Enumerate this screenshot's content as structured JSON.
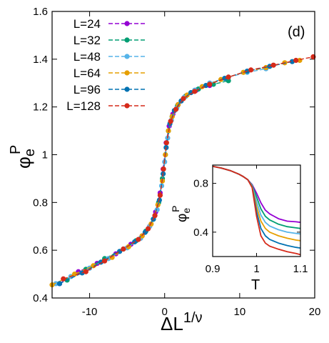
{
  "chart_data": [
    {
      "type": "scatter",
      "panel_label": "(d)",
      "xlabel": "ΔL",
      "xlabel_sup": "1/ν",
      "ylabel": "φ",
      "ylabel_sub": "e",
      "ylabel_sup": "P",
      "xlim": [
        -15,
        20
      ],
      "ylim": [
        0.4,
        1.6
      ],
      "xticks": [
        -10,
        0,
        10,
        20
      ],
      "yticks": [
        0.4,
        0.6,
        0.8,
        1,
        1.2,
        1.4,
        1.6
      ],
      "xtick_labels": [
        "-10",
        "0",
        "10",
        "20"
      ],
      "ytick_labels": [
        "0.4",
        "0.6",
        "0.8",
        "1",
        "1.2",
        "1.4",
        "1.6"
      ],
      "legend_position": "top-left",
      "series": [
        {
          "name": "L=24",
          "color": "#9400d3",
          "x": [
            -14.0,
            -11.5,
            -9.0,
            -6.5,
            -4.5,
            -3.0,
            -2.0,
            -1.2,
            -0.6,
            -0.2,
            0.2,
            0.6,
            1.1,
            1.8,
            2.8,
            4.2,
            6.0
          ],
          "y": [
            0.46,
            0.51,
            0.545,
            0.585,
            0.625,
            0.66,
            0.7,
            0.76,
            0.84,
            0.94,
            1.05,
            1.12,
            1.17,
            1.21,
            1.245,
            1.27,
            1.29
          ]
        },
        {
          "name": "L=32",
          "color": "#009e73",
          "x": [
            -13.0,
            -10.5,
            -8.0,
            -5.5,
            -3.8,
            -2.5,
            -1.5,
            -0.8,
            -0.3,
            0.1,
            0.5,
            1.0,
            1.7,
            2.8,
            4.5,
            6.5,
            8.5
          ],
          "y": [
            0.475,
            0.52,
            0.565,
            0.605,
            0.64,
            0.68,
            0.73,
            0.8,
            0.9,
            1.0,
            1.1,
            1.16,
            1.205,
            1.245,
            1.275,
            1.295,
            1.31
          ]
        },
        {
          "name": "L=48",
          "color": "#56b4e9",
          "x": [
            -14.5,
            -12.5,
            -10.0,
            -7.5,
            -5.0,
            -3.2,
            -2.0,
            -1.0,
            -0.4,
            0.0,
            0.4,
            0.9,
            1.6,
            2.6,
            4.0,
            6.0,
            8.5,
            11.0,
            13.5
          ],
          "y": [
            0.46,
            0.49,
            0.525,
            0.565,
            0.61,
            0.65,
            0.7,
            0.77,
            0.87,
            0.97,
            1.07,
            1.145,
            1.195,
            1.24,
            1.27,
            1.3,
            1.325,
            1.345,
            1.36
          ]
        },
        {
          "name": "L=64",
          "color": "#e69f00",
          "x": [
            -15.0,
            -12.0,
            -9.5,
            -7.0,
            -4.8,
            -3.0,
            -1.8,
            -0.9,
            -0.3,
            0.1,
            0.5,
            1.0,
            1.8,
            3.0,
            5.0,
            7.5,
            10.5,
            13.5,
            16.0,
            18.0
          ],
          "y": [
            0.455,
            0.5,
            0.535,
            0.57,
            0.615,
            0.66,
            0.71,
            0.79,
            0.89,
            1.0,
            1.1,
            1.16,
            1.21,
            1.25,
            1.285,
            1.315,
            1.345,
            1.365,
            1.385,
            1.395
          ]
        },
        {
          "name": "L=96",
          "color": "#0072b2",
          "x": [
            -14.0,
            -11.0,
            -8.5,
            -6.0,
            -4.0,
            -2.6,
            -1.5,
            -0.7,
            -0.2,
            0.2,
            0.7,
            1.3,
            2.2,
            3.5,
            5.5,
            8.0,
            11.0,
            14.0,
            17.0
          ],
          "y": [
            0.46,
            0.505,
            0.55,
            0.595,
            0.635,
            0.675,
            0.73,
            0.81,
            0.92,
            1.03,
            1.13,
            1.185,
            1.225,
            1.26,
            1.29,
            1.32,
            1.35,
            1.37,
            1.39
          ]
        },
        {
          "name": "L=128",
          "color": "#d62a1a",
          "x": [
            -13.5,
            -10.5,
            -8.0,
            -5.5,
            -3.5,
            -2.2,
            -1.3,
            -0.6,
            -0.15,
            0.25,
            0.8,
            1.5,
            2.5,
            4.0,
            6.0,
            8.5,
            11.5,
            14.5,
            17.5,
            19.8
          ],
          "y": [
            0.48,
            0.51,
            0.555,
            0.605,
            0.645,
            0.69,
            0.745,
            0.83,
            0.94,
            1.05,
            1.14,
            1.19,
            1.235,
            1.265,
            1.295,
            1.325,
            1.355,
            1.375,
            1.395,
            1.41
          ]
        }
      ]
    },
    {
      "type": "line",
      "role": "inset",
      "xlabel": "T",
      "ylabel": "φ",
      "ylabel_sub": "e",
      "ylabel_sup": "P",
      "xlim": [
        0.9,
        1.1
      ],
      "ylim": [
        0.2,
        0.95
      ],
      "xticks": [
        0.9,
        1,
        1.1
      ],
      "yticks": [
        0.4,
        0.8
      ],
      "xtick_labels": [
        "0.9",
        "1",
        "1.1"
      ],
      "ytick_labels": [
        "0.4",
        "0.8"
      ],
      "series": [
        {
          "name": "L=24",
          "color": "#9400d3",
          "x": [
            0.9,
            0.92,
            0.94,
            0.96,
            0.97,
            0.98,
            0.99,
            1.0,
            1.01,
            1.02,
            1.03,
            1.05,
            1.07,
            1.09,
            1.1
          ],
          "y": [
            0.94,
            0.925,
            0.905,
            0.875,
            0.855,
            0.83,
            0.79,
            0.72,
            0.64,
            0.58,
            0.55,
            0.51,
            0.49,
            0.485,
            0.48
          ]
        },
        {
          "name": "L=32",
          "color": "#009e73",
          "x": [
            0.9,
            0.92,
            0.94,
            0.96,
            0.97,
            0.98,
            0.99,
            1.0,
            1.01,
            1.02,
            1.03,
            1.05,
            1.07,
            1.09,
            1.1
          ],
          "y": [
            0.94,
            0.925,
            0.905,
            0.875,
            0.855,
            0.83,
            0.785,
            0.69,
            0.59,
            0.53,
            0.5,
            0.465,
            0.445,
            0.435,
            0.43
          ]
        },
        {
          "name": "L=48",
          "color": "#56b4e9",
          "x": [
            0.9,
            0.92,
            0.94,
            0.96,
            0.97,
            0.98,
            0.99,
            1.0,
            1.01,
            1.02,
            1.03,
            1.05,
            1.07,
            1.09,
            1.1
          ],
          "y": [
            0.94,
            0.925,
            0.905,
            0.875,
            0.855,
            0.83,
            0.78,
            0.65,
            0.54,
            0.48,
            0.45,
            0.42,
            0.4,
            0.39,
            0.385
          ]
        },
        {
          "name": "L=64",
          "color": "#e69f00",
          "x": [
            0.9,
            0.92,
            0.94,
            0.96,
            0.97,
            0.98,
            0.99,
            1.0,
            1.01,
            1.02,
            1.03,
            1.05,
            1.07,
            1.09,
            1.1
          ],
          "y": [
            0.94,
            0.925,
            0.905,
            0.875,
            0.855,
            0.83,
            0.775,
            0.61,
            0.49,
            0.43,
            0.4,
            0.37,
            0.35,
            0.335,
            0.33
          ]
        },
        {
          "name": "L=96",
          "color": "#0072b2",
          "x": [
            0.9,
            0.92,
            0.94,
            0.96,
            0.97,
            0.98,
            0.99,
            1.0,
            1.01,
            1.02,
            1.03,
            1.05,
            1.07,
            1.09,
            1.1
          ],
          "y": [
            0.94,
            0.925,
            0.905,
            0.875,
            0.855,
            0.83,
            0.77,
            0.57,
            0.43,
            0.37,
            0.34,
            0.31,
            0.29,
            0.275,
            0.27
          ]
        },
        {
          "name": "L=128",
          "color": "#d62a1a",
          "x": [
            0.9,
            0.92,
            0.94,
            0.96,
            0.97,
            0.98,
            0.99,
            1.0,
            1.01,
            1.02,
            1.03,
            1.05,
            1.07,
            1.09,
            1.1
          ],
          "y": [
            0.94,
            0.925,
            0.905,
            0.875,
            0.855,
            0.83,
            0.765,
            0.53,
            0.37,
            0.31,
            0.285,
            0.26,
            0.24,
            0.225,
            0.215
          ]
        }
      ]
    }
  ]
}
